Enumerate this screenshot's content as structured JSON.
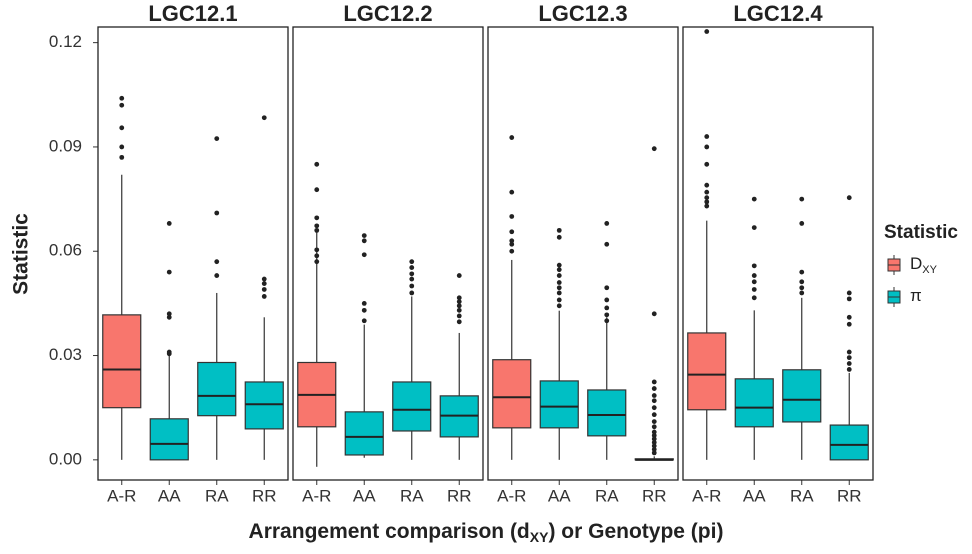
{
  "chart_data": {
    "type": "box",
    "ylabel": "Statistic",
    "xlabel": [
      {
        "text": "Arrangement comparison (d"
      },
      {
        "text": "XY",
        "sub": true
      },
      {
        "text": ") or Genotype (pi)"
      }
    ],
    "legend_title": "Statistic",
    "series": [
      {
        "name": "D",
        "sub": "XY",
        "color": "#F8766D"
      },
      {
        "name": "π",
        "color": "#00BFC4"
      }
    ],
    "categories": [
      "A-R",
      "AA",
      "RA",
      "RR"
    ],
    "ylim": [
      -0.0058,
      0.1245
    ],
    "yticks": [
      {
        "value": 0,
        "label": "0.00"
      },
      {
        "value": 0.03,
        "label": "0.03"
      },
      {
        "value": 0.06,
        "label": "0.06"
      },
      {
        "value": 0.09,
        "label": "0.09"
      },
      {
        "value": 0.12,
        "label": "0.12"
      }
    ],
    "facets": [
      {
        "title": "LGC12.1",
        "boxes": [
          {
            "series": 0,
            "whislo": 0,
            "q1": 0.015,
            "med": 0.026,
            "q3": 0.0417,
            "whishi": 0.082,
            "fliers": [
              0.104,
              0.102,
              0.0955,
              0.09,
              0.087
            ]
          },
          {
            "series": 1,
            "whislo": 0,
            "q1": 0,
            "med": 0.0046,
            "q3": 0.0118,
            "whishi": 0.03,
            "fliers": [
              0.031,
              0.0305,
              0.041,
              0.042,
              0.054,
              0.068
            ]
          },
          {
            "series": 1,
            "whislo": 0,
            "q1": 0.0127,
            "med": 0.0184,
            "q3": 0.028,
            "whishi": 0.048,
            "fliers": [
              0.053,
              0.057,
              0.071,
              0.0924
            ]
          },
          {
            "series": 1,
            "whislo": 0,
            "q1": 0.0089,
            "med": 0.016,
            "q3": 0.0224,
            "whishi": 0.041,
            "fliers": [
              0.052,
              0.0507,
              0.049,
              0.047,
              0.0984
            ]
          }
        ]
      },
      {
        "title": "LGC12.2",
        "boxes": [
          {
            "series": 0,
            "whislo": -0.002,
            "q1": 0.0095,
            "med": 0.0187,
            "q3": 0.028,
            "whishi": 0.0656,
            "fliers": [
              0.085,
              0.0777,
              0.0696,
              0.0673,
              0.066,
              0.0604,
              0.0587,
              0.057
            ]
          },
          {
            "series": 1,
            "whislo": 0.0006,
            "q1": 0.0014,
            "med": 0.0066,
            "q3": 0.0138,
            "whishi": 0.0389,
            "fliers": [
              0.04,
              0.043,
              0.045,
              0.059,
              0.063,
              0.0645
            ]
          },
          {
            "series": 1,
            "whislo": 0,
            "q1": 0.0083,
            "med": 0.0144,
            "q3": 0.0224,
            "whishi": 0.047,
            "fliers": [
              0.048,
              0.05,
              0.052,
              0.0535,
              0.0553,
              0.057
            ]
          },
          {
            "series": 1,
            "whislo": 0,
            "q1": 0.0066,
            "med": 0.0127,
            "q3": 0.0184,
            "whishi": 0.0365,
            "fliers": [
              0.0397,
              0.0414,
              0.043,
              0.0443,
              0.0455,
              0.0466,
              0.053
            ]
          }
        ]
      },
      {
        "title": "LGC12.3",
        "boxes": [
          {
            "series": 0,
            "whislo": 0,
            "q1": 0.0092,
            "med": 0.018,
            "q3": 0.0288,
            "whishi": 0.0575,
            "fliers": [
              0.06,
              0.062,
              0.063,
              0.0656,
              0.07,
              0.077,
              0.0927
            ]
          },
          {
            "series": 1,
            "whislo": 0,
            "q1": 0.0092,
            "med": 0.0153,
            "q3": 0.0227,
            "whishi": 0.0429,
            "fliers": [
              0.0443,
              0.046,
              0.048,
              0.0495,
              0.051,
              0.053,
              0.0547,
              0.056,
              0.064,
              0.066
            ]
          },
          {
            "series": 1,
            "whislo": 0,
            "q1": 0.0069,
            "med": 0.0129,
            "q3": 0.0201,
            "whishi": 0.041,
            "fliers": [
              0.04,
              0.0417,
              0.0437,
              0.046,
              0.0495,
              0.062,
              0.068
            ]
          },
          {
            "series": 1,
            "whislo": 0,
            "q1": 0,
            "med": 0,
            "q3": 0.0003,
            "whishi": 0.001,
            "fliers": [
              0.002,
              0.003,
              0.004,
              0.005,
              0.006,
              0.007,
              0.008,
              0.0095,
              0.011,
              0.013,
              0.015,
              0.017,
              0.0185,
              0.0205,
              0.0224,
              0.042,
              0.0895
            ]
          }
        ]
      },
      {
        "title": "LGC12.4",
        "boxes": [
          {
            "series": 0,
            "whislo": 0,
            "q1": 0.0144,
            "med": 0.0245,
            "q3": 0.0365,
            "whishi": 0.0688,
            "fliers": [
              0.073,
              0.0742,
              0.0754,
              0.077,
              0.079,
              0.085,
              0.09,
              0.093,
              0.1232
            ]
          },
          {
            "series": 1,
            "whislo": 0,
            "q1": 0.0095,
            "med": 0.015,
            "q3": 0.0233,
            "whishi": 0.043,
            "fliers": [
              0.0466,
              0.049,
              0.0512,
              0.053,
              0.0558,
              0.0668,
              0.075
            ]
          },
          {
            "series": 1,
            "whislo": 0,
            "q1": 0.0109,
            "med": 0.0173,
            "q3": 0.0259,
            "whishi": 0.0466,
            "fliers": [
              0.048,
              0.0495,
              0.0512,
              0.054,
              0.068,
              0.075
            ]
          },
          {
            "series": 1,
            "whislo": 0,
            "q1": 0,
            "med": 0.0043,
            "q3": 0.01,
            "whishi": 0.025,
            "fliers": [
              0.026,
              0.0277,
              0.0294,
              0.031,
              0.039,
              0.041,
              0.0463,
              0.048,
              0.0754
            ]
          }
        ]
      }
    ]
  }
}
